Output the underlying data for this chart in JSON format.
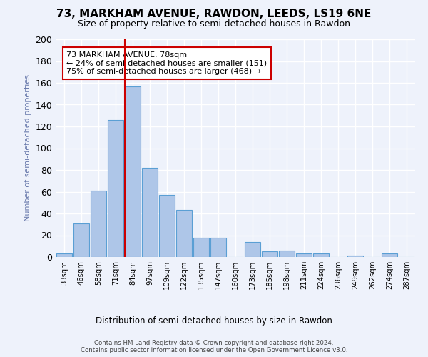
{
  "title": "73, MARKHAM AVENUE, RAWDON, LEEDS, LS19 6NE",
  "subtitle": "Size of property relative to semi-detached houses in Rawdon",
  "xlabel": "Distribution of semi-detached houses by size in Rawdon",
  "ylabel": "Number of semi-detached properties",
  "categories": [
    "33sqm",
    "46sqm",
    "58sqm",
    "71sqm",
    "84sqm",
    "97sqm",
    "109sqm",
    "122sqm",
    "135sqm",
    "147sqm",
    "160sqm",
    "173sqm",
    "185sqm",
    "198sqm",
    "211sqm",
    "224sqm",
    "236sqm",
    "249sqm",
    "262sqm",
    "274sqm",
    "287sqm"
  ],
  "values": [
    3,
    31,
    61,
    126,
    157,
    82,
    57,
    43,
    18,
    18,
    0,
    14,
    5,
    6,
    3,
    3,
    0,
    1,
    0,
    3,
    0
  ],
  "bar_color": "#aec6e8",
  "bar_edge_color": "#5a9fd4",
  "vline_pos": 3.55,
  "vline_color": "#cc0000",
  "annotation_title": "73 MARKHAM AVENUE: 78sqm",
  "annotation_line1": "← 24% of semi-detached houses are smaller (151)",
  "annotation_line2": "75% of semi-detached houses are larger (468) →",
  "annotation_box_color": "#ffffff",
  "annotation_box_edge": "#cc0000",
  "footnote1": "Contains HM Land Registry data © Crown copyright and database right 2024.",
  "footnote2": "Contains public sector information licensed under the Open Government Licence v3.0.",
  "ylim": [
    0,
    200
  ],
  "yticks": [
    0,
    20,
    40,
    60,
    80,
    100,
    120,
    140,
    160,
    180,
    200
  ],
  "bg_color": "#eef2fb",
  "grid_color": "#ffffff",
  "title_fontsize": 11,
  "subtitle_fontsize": 9,
  "ylabel_color": "#6677aa"
}
